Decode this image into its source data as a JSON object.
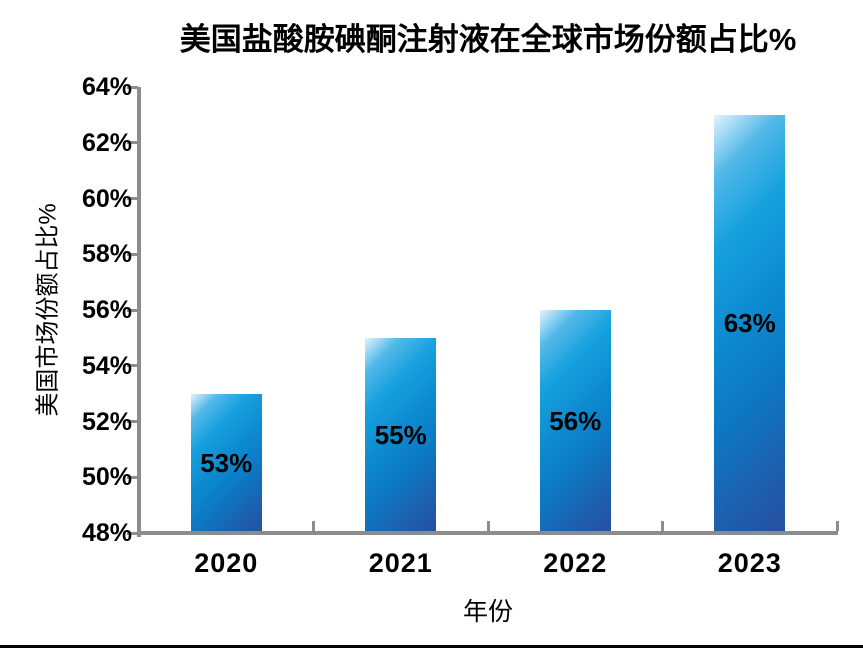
{
  "chart_data": {
    "type": "bar",
    "title": "美国盐酸胺碘酮注射液在全球市场份额占比%",
    "xlabel": "年份",
    "ylabel": "美国市场份额占比%",
    "categories": [
      "2020",
      "2021",
      "2022",
      "2023"
    ],
    "values": [
      53,
      55,
      56,
      63
    ],
    "data_labels": [
      "53%",
      "55%",
      "56%",
      "63%"
    ],
    "data_label_position": "center-inside",
    "ylim": [
      48,
      64
    ],
    "ytick_step": 2,
    "ytick_labels": [
      "48%",
      "50%",
      "52%",
      "54%",
      "56%",
      "58%",
      "60%",
      "62%",
      "64%"
    ],
    "grid": false,
    "legend": "none",
    "bar_gradient": [
      "#e3f3fc",
      "#17a1de",
      "#0c8bcf",
      "#27509f"
    ],
    "bar_gradient_direction": "diagonal-135deg",
    "axis_color": "#8c8c8c",
    "text_color": "#000000",
    "background_color": "#ffffff"
  }
}
